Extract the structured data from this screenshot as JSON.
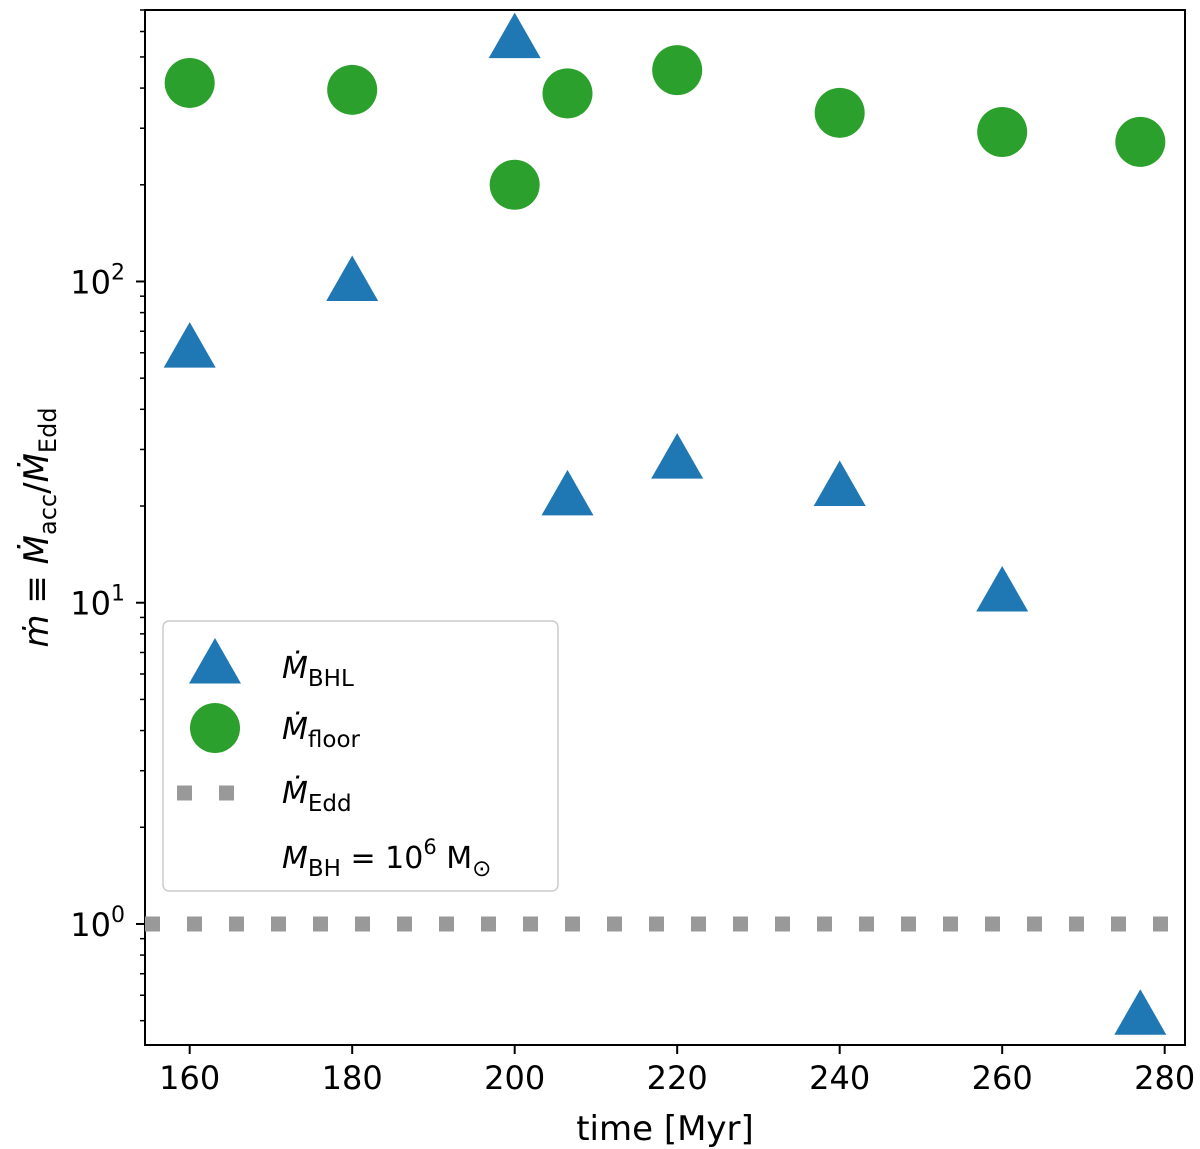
{
  "chart_data": {
    "type": "scatter",
    "title": "",
    "xlabel": "time [Myr]",
    "ylabel": "ṁ ≡ Ṁ_acc/Ṁ_Edd",
    "xlim": [
      154.5,
      282.5
    ],
    "ylim": [
      0.42,
      700
    ],
    "yscale": "log",
    "x_ticks": [
      160,
      180,
      200,
      220,
      240,
      260,
      280
    ],
    "y_ticks": [
      {
        "value": 1,
        "base": "10",
        "exp": "0"
      },
      {
        "value": 10,
        "base": "10",
        "exp": "1"
      },
      {
        "value": 100,
        "base": "10",
        "exp": "2"
      }
    ],
    "series": [
      {
        "name": "BHL",
        "label_main": "Ṁ",
        "label_sub": "BHL",
        "marker": "triangle",
        "color": "#1f77b4",
        "x": [
          160,
          180,
          200,
          206.5,
          220,
          240,
          260,
          277
        ],
        "y": [
          62,
          100,
          570,
          21.5,
          28,
          23,
          10.8,
          0.52
        ]
      },
      {
        "name": "floor",
        "label_main": "Ṁ",
        "label_sub": "floor",
        "marker": "circle",
        "color": "#2ca02c",
        "x": [
          160,
          180,
          200,
          206.5,
          220,
          240,
          260,
          277
        ],
        "y": [
          415,
          395,
          200,
          385,
          455,
          335,
          292,
          272
        ]
      },
      {
        "name": "Edd",
        "label_main": "Ṁ",
        "label_sub": "Edd",
        "marker": "dotted-line",
        "color": "#999999",
        "y_const": 1
      }
    ],
    "legend": {
      "placement": "center-left",
      "note_main": "M",
      "note_sub": "BH",
      "note_eq": " = 10",
      "note_exp": "6",
      "note_unit": " M",
      "note_unit_sub": "⊙"
    }
  }
}
